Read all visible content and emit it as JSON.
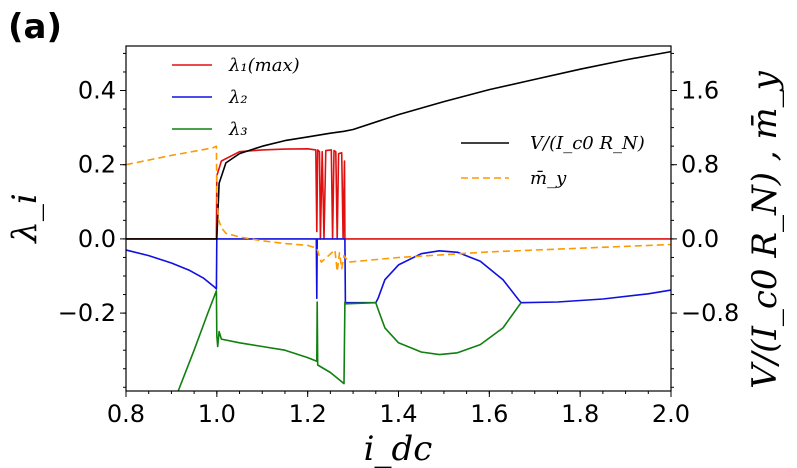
{
  "panel_label": "(a)",
  "chart_data": {
    "type": "line",
    "xlabel": "i_dc",
    "ylabel_left": "λ_i",
    "ylabel_right": "V/(I_c0 R_N) , m̄_y",
    "xlim": [
      0.8,
      2.0
    ],
    "ylim_left": [
      -0.41,
      0.52
    ],
    "ylim_right": [
      -1.64,
      2.08
    ],
    "xticks": [
      "0.8",
      "1.0",
      "1.2",
      "1.4",
      "1.6",
      "1.8",
      "2.0"
    ],
    "yticks_left": [
      "−0.2",
      "0.0",
      "0.2",
      "0.4"
    ],
    "yticks_right": [
      "−0.8",
      "0.0",
      "0.8",
      "1.6"
    ],
    "legend_left": [
      {
        "label": "λ₁(max)",
        "color": "#e01010"
      },
      {
        "label": "λ₂",
        "color": "#1010e0"
      },
      {
        "label": "λ₃",
        "color": "#108010"
      }
    ],
    "legend_right": [
      {
        "label": "V/(I_c0 R_N)",
        "color": "#000000"
      },
      {
        "label": "m̄_y",
        "color": "#ff9900"
      }
    ],
    "series": [
      {
        "name": "lambda1",
        "axis": "left",
        "color": "#e01010",
        "x": [
          0.8,
          0.999,
          1.0,
          1.01,
          1.05,
          1.1,
          1.15,
          1.2,
          1.218,
          1.22,
          1.222,
          1.226,
          1.228,
          1.232,
          1.236,
          1.24,
          1.252,
          1.255,
          1.258,
          1.262,
          1.265,
          1.268,
          1.275,
          1.278,
          1.281,
          1.282,
          1.3,
          1.5,
          2.0
        ],
        "y": [
          0.0,
          0.0,
          0.17,
          0.21,
          0.235,
          0.24,
          0.242,
          0.243,
          0.24,
          0.02,
          0.24,
          0.235,
          0.0,
          0.235,
          0.0,
          0.238,
          0.24,
          0.0,
          0.238,
          0.235,
          0.0,
          0.23,
          0.232,
          0.0,
          0.21,
          0.0,
          0.0,
          0.0,
          0.0
        ]
      },
      {
        "name": "lambda2",
        "axis": "left",
        "color": "#1010e0",
        "x": [
          0.8,
          0.85,
          0.9,
          0.94,
          0.97,
          0.995,
          0.999,
          1.0,
          1.05,
          1.1,
          1.15,
          1.2,
          1.219,
          1.22,
          1.221,
          1.222,
          1.282,
          1.283,
          1.285,
          1.35,
          1.355,
          1.37,
          1.4,
          1.45,
          1.49,
          1.53,
          1.58,
          1.63,
          1.665,
          1.67,
          1.75,
          1.85,
          1.95,
          2.0
        ],
        "y": [
          -0.03,
          -0.045,
          -0.065,
          -0.085,
          -0.105,
          -0.13,
          -0.135,
          0.0,
          0.0,
          0.0,
          0.0,
          0.0,
          0.0,
          -0.16,
          0.0,
          0.0,
          0.0,
          -0.175,
          -0.172,
          -0.172,
          -0.16,
          -0.11,
          -0.07,
          -0.04,
          -0.032,
          -0.036,
          -0.06,
          -0.11,
          -0.165,
          -0.172,
          -0.17,
          -0.162,
          -0.148,
          -0.138
        ]
      },
      {
        "name": "lambda3",
        "axis": "left",
        "color": "#108010",
        "x": [
          0.915,
          0.95,
          0.98,
          0.999,
          1.0,
          1.002,
          1.005,
          1.01,
          1.05,
          1.1,
          1.15,
          1.2,
          1.22,
          1.221,
          1.222,
          1.25,
          1.28,
          1.282,
          1.283,
          1.35,
          1.355,
          1.37,
          1.4,
          1.45,
          1.49,
          1.53,
          1.58,
          1.63,
          1.665,
          1.67
        ],
        "y": [
          -0.41,
          -0.3,
          -0.2,
          -0.14,
          -0.26,
          -0.29,
          -0.25,
          -0.27,
          -0.28,
          -0.29,
          -0.3,
          -0.32,
          -0.33,
          -0.17,
          -0.34,
          -0.36,
          -0.39,
          -0.17,
          -0.175,
          -0.172,
          -0.19,
          -0.24,
          -0.28,
          -0.305,
          -0.312,
          -0.307,
          -0.285,
          -0.24,
          -0.18,
          -0.172
        ]
      },
      {
        "name": "V_over_Ic0RN",
        "axis": "right",
        "color": "#000000",
        "x": [
          0.8,
          1.0,
          1.005,
          1.02,
          1.05,
          1.1,
          1.15,
          1.2,
          1.25,
          1.28,
          1.3,
          1.4,
          1.5,
          1.6,
          1.7,
          1.8,
          1.9,
          2.0
        ],
        "y": [
          0.0,
          0.0,
          0.6,
          0.82,
          0.92,
          1.0,
          1.06,
          1.1,
          1.14,
          1.16,
          1.18,
          1.34,
          1.48,
          1.61,
          1.72,
          1.83,
          1.93,
          2.02
        ]
      },
      {
        "name": "m_y",
        "axis": "right",
        "color": "#ff9900",
        "dashed": true,
        "x": [
          0.8,
          0.9,
          0.99,
          0.999,
          1.0,
          1.003,
          1.01,
          1.02,
          1.05,
          1.1,
          1.15,
          1.2,
          1.22,
          1.23,
          1.26,
          1.265,
          1.27,
          1.275,
          1.28,
          1.29,
          1.4,
          1.6,
          1.8,
          2.0
        ],
        "y": [
          0.8,
          0.9,
          0.98,
          1.0,
          0.5,
          0.22,
          0.12,
          0.06,
          0.02,
          -0.02,
          -0.05,
          -0.07,
          -0.1,
          -0.25,
          -0.12,
          -0.35,
          -0.15,
          -0.32,
          -0.18,
          -0.25,
          -0.2,
          -0.14,
          -0.1,
          -0.06
        ]
      }
    ]
  }
}
